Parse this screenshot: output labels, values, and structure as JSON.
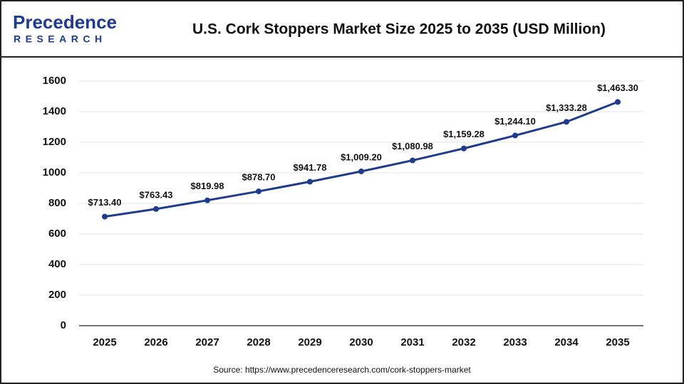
{
  "header": {
    "logo": {
      "name": "Precedence",
      "tagline": "RESEARCH"
    }
  },
  "chart_data": {
    "type": "line",
    "title": "U.S. Cork Stoppers Market Size 2025 to 2035 (USD Million)",
    "categories": [
      "2025",
      "2026",
      "2027",
      "2028",
      "2029",
      "2030",
      "2031",
      "2032",
      "2033",
      "2034",
      "2035"
    ],
    "values": [
      713.4,
      763.43,
      819.98,
      878.7,
      941.78,
      1009.2,
      1080.98,
      1159.28,
      1244.1,
      1333.28,
      1463.3
    ],
    "value_labels": [
      "$713.40",
      "$763.43",
      "$819.98",
      "$878.70",
      "$941.78",
      "$1,009.20",
      "$1,080.98",
      "$1,159.28",
      "$1,244.10",
      "$1,333.28",
      "$1,463.30"
    ],
    "color": "#1f3b8c",
    "ylim": [
      0,
      1600
    ],
    "yticks": [
      0,
      200,
      400,
      600,
      800,
      1000,
      1200,
      1400,
      1600
    ],
    "grid": true,
    "source": "Source: https://www.precedenceresearch.com/cork-stoppers-market"
  }
}
